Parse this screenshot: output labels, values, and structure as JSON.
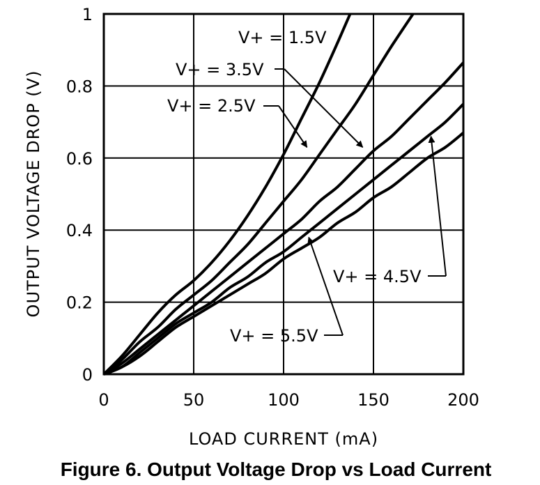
{
  "caption": "Figure 6. Output Voltage Drop vs Load Current",
  "chart_data": {
    "type": "line",
    "xlabel": "LOAD CURRENT (mA)",
    "ylabel": "OUTPUT VOLTAGE DROP (V)",
    "xlim": [
      0,
      200
    ],
    "ylim": [
      0,
      1
    ],
    "xticks": [
      0,
      50,
      100,
      150,
      200
    ],
    "yticks": [
      0,
      0.2,
      0.4,
      0.6,
      0.8,
      1
    ],
    "xtick_labels": [
      "0",
      "50",
      "100",
      "150",
      "200"
    ],
    "ytick_labels": [
      "0",
      "0.2",
      "0.4",
      "0.6",
      "0.8",
      "1"
    ],
    "grid": true,
    "series": [
      {
        "name": "V+ = 1.5V",
        "x": [
          0,
          10,
          20,
          30,
          40,
          50,
          60,
          70,
          80,
          90,
          100,
          110,
          120,
          130,
          137
        ],
        "y": [
          0,
          0.05,
          0.11,
          0.17,
          0.22,
          0.26,
          0.31,
          0.37,
          0.44,
          0.52,
          0.61,
          0.71,
          0.81,
          0.92,
          1.0
        ]
      },
      {
        "name": "V+ = 2.5V",
        "x": [
          0,
          10,
          20,
          30,
          40,
          50,
          60,
          70,
          80,
          90,
          100,
          110,
          120,
          130,
          140,
          150,
          160,
          172
        ],
        "y": [
          0,
          0.04,
          0.09,
          0.13,
          0.18,
          0.22,
          0.26,
          0.31,
          0.36,
          0.42,
          0.48,
          0.54,
          0.61,
          0.68,
          0.75,
          0.83,
          0.91,
          1.0
        ]
      },
      {
        "name": "V+ = 3.5V",
        "x": [
          0,
          10,
          20,
          30,
          40,
          50,
          60,
          70,
          80,
          90,
          100,
          110,
          120,
          130,
          140,
          150,
          160,
          170,
          180,
          190,
          200
        ],
        "y": [
          0,
          0.03,
          0.07,
          0.11,
          0.15,
          0.19,
          0.23,
          0.27,
          0.31,
          0.35,
          0.39,
          0.43,
          0.48,
          0.52,
          0.57,
          0.62,
          0.66,
          0.71,
          0.76,
          0.81,
          0.865
        ]
      },
      {
        "name": "V+ = 4.5V",
        "x": [
          0,
          10,
          20,
          30,
          40,
          50,
          60,
          70,
          80,
          90,
          100,
          110,
          120,
          130,
          140,
          150,
          160,
          170,
          180,
          190,
          200
        ],
        "y": [
          0,
          0.02,
          0.06,
          0.1,
          0.14,
          0.17,
          0.2,
          0.24,
          0.27,
          0.31,
          0.34,
          0.38,
          0.42,
          0.46,
          0.5,
          0.54,
          0.58,
          0.62,
          0.66,
          0.7,
          0.75
        ]
      },
      {
        "name": "V+ = 5.5V",
        "x": [
          0,
          10,
          20,
          30,
          40,
          50,
          60,
          70,
          80,
          90,
          100,
          110,
          120,
          130,
          140,
          150,
          160,
          170,
          180,
          190,
          200
        ],
        "y": [
          0,
          0.02,
          0.05,
          0.09,
          0.13,
          0.16,
          0.19,
          0.22,
          0.25,
          0.28,
          0.32,
          0.35,
          0.38,
          0.42,
          0.45,
          0.49,
          0.52,
          0.56,
          0.6,
          0.63,
          0.67
        ]
      }
    ],
    "annotations": [
      {
        "text": "V+ = 1.5V",
        "series": "V+ = 1.5V"
      },
      {
        "text": "V+ = 3.5V",
        "series": "V+ = 3.5V",
        "arrow_to": [
          144,
          0.63
        ]
      },
      {
        "text": "V+ = 2.5V",
        "series": "V+ = 2.5V",
        "arrow_to": [
          113,
          0.63
        ]
      },
      {
        "text": "V+ = 4.5V",
        "series": "V+ = 4.5V",
        "arrow_to": [
          182,
          0.66
        ]
      },
      {
        "text": "V+ = 5.5V",
        "series": "V+ = 5.5V",
        "arrow_to": [
          114,
          0.38
        ]
      }
    ]
  }
}
